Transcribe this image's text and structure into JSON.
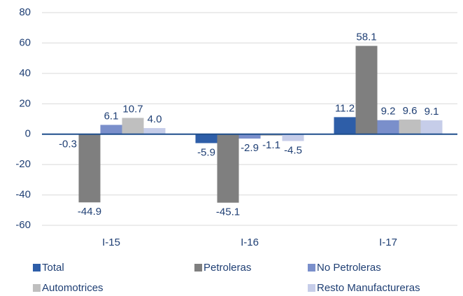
{
  "chart_data": {
    "type": "bar",
    "categories": [
      "I-15",
      "I-16",
      "I-17"
    ],
    "series": [
      {
        "name": "Total",
        "color": "#2e5ea8",
        "values": [
          -0.3,
          -5.9,
          11.2
        ]
      },
      {
        "name": "Petroleras",
        "color": "#7f7f7f",
        "values": [
          -44.9,
          -45.1,
          58.1
        ]
      },
      {
        "name": "No Petroleras",
        "color": "#7a8fcb",
        "values": [
          6.1,
          -2.9,
          9.2
        ]
      },
      {
        "name": "Automotrices",
        "color": "#bfbfbf",
        "values": [
          10.7,
          -1.1,
          9.6
        ]
      },
      {
        "name": "Resto Manufactureras",
        "color": "#c6cde9",
        "values": [
          4.0,
          -4.5,
          9.1
        ],
        "value_labels": [
          "4.0",
          "-4.5",
          "9.1"
        ]
      }
    ],
    "ylim": [
      -60,
      80
    ],
    "yticks": [
      -60,
      -40,
      -20,
      0,
      20,
      40,
      60,
      80
    ],
    "grid": true
  }
}
